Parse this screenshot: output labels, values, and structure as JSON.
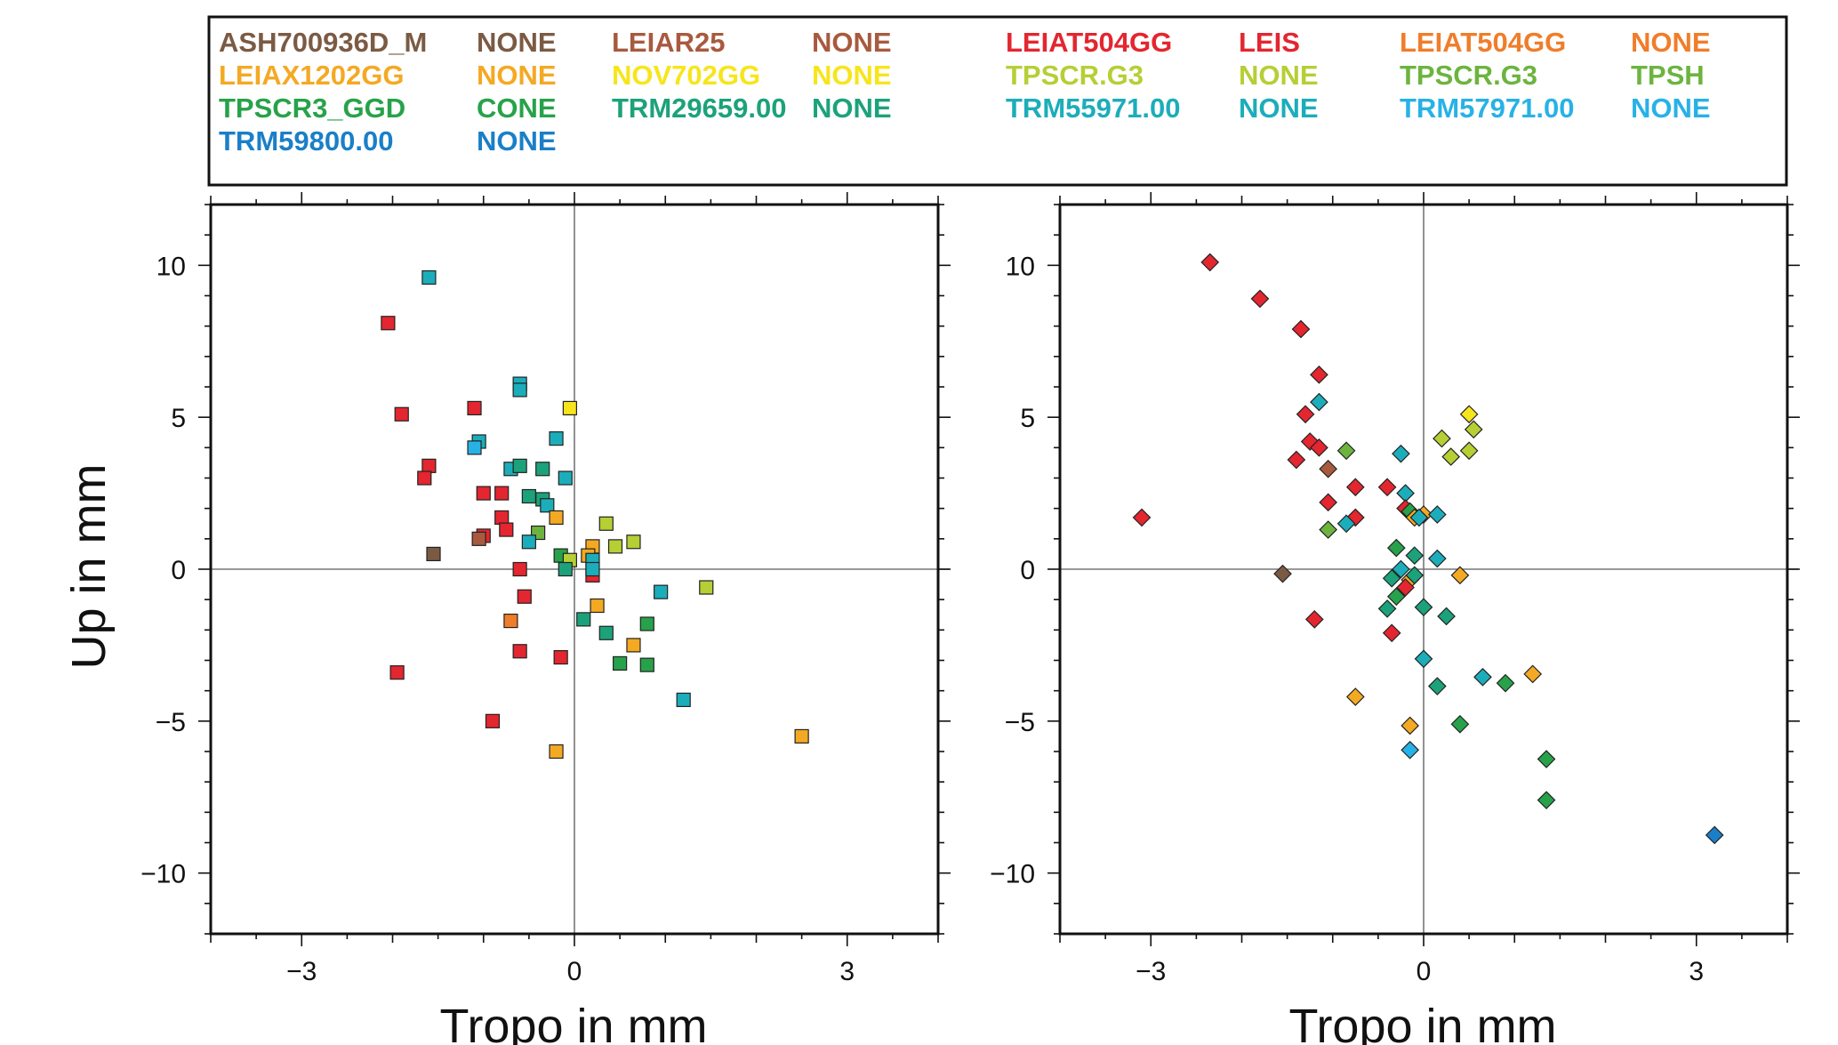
{
  "legend": [
    {
      "model": "ASH700936D_M",
      "radome": "NONE",
      "color": "#7b5a44"
    },
    {
      "model": "LEIAR25",
      "radome": "NONE",
      "color": "#a85a3e"
    },
    {
      "model": "LEIAT504GG",
      "radome": "LEIS",
      "color": "#e3262f"
    },
    {
      "model": "LEIAT504GG",
      "radome": "NONE",
      "color": "#f07d2a"
    },
    {
      "model": "LEIAX1202GG",
      "radome": "NONE",
      "color": "#f4a923"
    },
    {
      "model": "NOV702GG",
      "radome": "NONE",
      "color": "#f7e51c"
    },
    {
      "model": "TPSCR.G3",
      "radome": "NONE",
      "color": "#b5cf35"
    },
    {
      "model": "TPSCR.G3",
      "radome": "TPSH",
      "color": "#6cb43f"
    },
    {
      "model": "TPSCR3_GGD",
      "radome": "CONE",
      "color": "#27a24a"
    },
    {
      "model": "TRM29659.00",
      "radome": "NONE",
      "color": "#1ca27a"
    },
    {
      "model": "TRM55971.00",
      "radome": "NONE",
      "color": "#1cadba"
    },
    {
      "model": "TRM57971.00",
      "radome": "NONE",
      "color": "#27b2e6"
    },
    {
      "model": "TRM59800.00",
      "radome": "NONE",
      "color": "#1a7fc8"
    }
  ],
  "chart_data": [
    {
      "type": "scatter",
      "marker": "square",
      "xlabel": "Tropo in mm",
      "ylabel": "Up in mm",
      "xlim": [
        -4,
        4
      ],
      "ylim": [
        -12,
        12
      ],
      "xticks": [
        "−3",
        "0",
        "3"
      ],
      "yticks": [
        "10",
        "5",
        "0",
        "−5",
        "−10"
      ],
      "points": [
        {
          "x": -2.05,
          "y": 8.1,
          "c": "#e3262f"
        },
        {
          "x": -1.9,
          "y": 5.1,
          "c": "#e3262f"
        },
        {
          "x": -1.6,
          "y": 3.4,
          "c": "#e3262f"
        },
        {
          "x": -1.65,
          "y": 3.0,
          "c": "#e3262f"
        },
        {
          "x": -1.1,
          "y": 5.3,
          "c": "#e3262f"
        },
        {
          "x": -1.0,
          "y": 2.5,
          "c": "#e3262f"
        },
        {
          "x": -0.8,
          "y": 2.5,
          "c": "#e3262f"
        },
        {
          "x": -0.8,
          "y": 1.7,
          "c": "#e3262f"
        },
        {
          "x": -0.75,
          "y": 1.3,
          "c": "#e3262f"
        },
        {
          "x": -1.0,
          "y": 1.1,
          "c": "#e3262f"
        },
        {
          "x": -1.05,
          "y": 1.0,
          "c": "#a85a3e"
        },
        {
          "x": -1.55,
          "y": 0.5,
          "c": "#7b5a44"
        },
        {
          "x": -1.95,
          "y": -3.4,
          "c": "#e3262f"
        },
        {
          "x": -0.9,
          "y": -5.0,
          "c": "#e3262f"
        },
        {
          "x": -0.6,
          "y": 0.0,
          "c": "#e3262f"
        },
        {
          "x": -0.55,
          "y": -0.9,
          "c": "#e3262f"
        },
        {
          "x": -0.6,
          "y": -2.7,
          "c": "#e3262f"
        },
        {
          "x": -0.7,
          "y": -1.7,
          "c": "#f07d2a"
        },
        {
          "x": -0.15,
          "y": -2.9,
          "c": "#e3262f"
        },
        {
          "x": 0.2,
          "y": -0.2,
          "c": "#e3262f"
        },
        {
          "x": -1.6,
          "y": 9.6,
          "c": "#1cadba"
        },
        {
          "x": -0.6,
          "y": 6.1,
          "c": "#1cadba"
        },
        {
          "x": -0.6,
          "y": 5.9,
          "c": "#1cadba"
        },
        {
          "x": -1.05,
          "y": 4.2,
          "c": "#1cadba"
        },
        {
          "x": -1.1,
          "y": 4.0,
          "c": "#27b2e6"
        },
        {
          "x": -0.2,
          "y": 4.3,
          "c": "#1cadba"
        },
        {
          "x": -0.05,
          "y": 5.3,
          "c": "#f7e51c"
        },
        {
          "x": -0.7,
          "y": 3.3,
          "c": "#1cadba"
        },
        {
          "x": -0.6,
          "y": 3.4,
          "c": "#1ca27a"
        },
        {
          "x": -0.35,
          "y": 3.3,
          "c": "#1ca27a"
        },
        {
          "x": -0.1,
          "y": 3.0,
          "c": "#1cadba"
        },
        {
          "x": -0.5,
          "y": 2.4,
          "c": "#1ca27a"
        },
        {
          "x": -0.35,
          "y": 2.3,
          "c": "#1ca27a"
        },
        {
          "x": -0.3,
          "y": 2.1,
          "c": "#1cadba"
        },
        {
          "x": -0.2,
          "y": 1.7,
          "c": "#f4a923"
        },
        {
          "x": -0.4,
          "y": 1.2,
          "c": "#6cb43f"
        },
        {
          "x": -0.5,
          "y": 0.9,
          "c": "#1cadba"
        },
        {
          "x": 0.35,
          "y": 1.5,
          "c": "#b5cf35"
        },
        {
          "x": 0.65,
          "y": 0.9,
          "c": "#b5cf35"
        },
        {
          "x": 0.45,
          "y": 0.75,
          "c": "#b5cf35"
        },
        {
          "x": 0.2,
          "y": 0.75,
          "c": "#f4a923"
        },
        {
          "x": 0.15,
          "y": 0.45,
          "c": "#f4a923"
        },
        {
          "x": -0.15,
          "y": 0.45,
          "c": "#27a24a"
        },
        {
          "x": -0.05,
          "y": 0.3,
          "c": "#b5cf35"
        },
        {
          "x": -0.1,
          "y": 0.0,
          "c": "#1ca27a"
        },
        {
          "x": 0.2,
          "y": 0.3,
          "c": "#1cadba"
        },
        {
          "x": 0.2,
          "y": 0.0,
          "c": "#1cadba"
        },
        {
          "x": 1.45,
          "y": -0.6,
          "c": "#b5cf35"
        },
        {
          "x": 0.95,
          "y": -0.75,
          "c": "#1cadba"
        },
        {
          "x": 0.25,
          "y": -1.2,
          "c": "#f4a923"
        },
        {
          "x": 0.1,
          "y": -1.65,
          "c": "#1ca27a"
        },
        {
          "x": 0.8,
          "y": -1.8,
          "c": "#27a24a"
        },
        {
          "x": 0.35,
          "y": -2.1,
          "c": "#1ca27a"
        },
        {
          "x": 0.65,
          "y": -2.5,
          "c": "#f4a923"
        },
        {
          "x": 0.5,
          "y": -3.1,
          "c": "#27a24a"
        },
        {
          "x": 0.8,
          "y": -3.15,
          "c": "#27a24a"
        },
        {
          "x": 1.2,
          "y": -4.3,
          "c": "#1cadba"
        },
        {
          "x": -0.2,
          "y": -6.0,
          "c": "#f4a923"
        },
        {
          "x": 2.5,
          "y": -5.5,
          "c": "#f4a923"
        }
      ]
    },
    {
      "type": "scatter",
      "marker": "diamond",
      "xlabel": "Tropo in mm",
      "ylabel": "",
      "xlim": [
        -4,
        4
      ],
      "ylim": [
        -12,
        12
      ],
      "xticks": [
        "−3",
        "0",
        "3"
      ],
      "yticks": [
        "10",
        "5",
        "0",
        "−5",
        "−10"
      ],
      "points": [
        {
          "x": -3.1,
          "y": 1.7,
          "c": "#e3262f"
        },
        {
          "x": -2.35,
          "y": 10.1,
          "c": "#e3262f"
        },
        {
          "x": -1.8,
          "y": 8.9,
          "c": "#e3262f"
        },
        {
          "x": -1.35,
          "y": 7.9,
          "c": "#e3262f"
        },
        {
          "x": -1.15,
          "y": 6.4,
          "c": "#e3262f"
        },
        {
          "x": -1.3,
          "y": 5.1,
          "c": "#e3262f"
        },
        {
          "x": -1.15,
          "y": 5.5,
          "c": "#1cadba"
        },
        {
          "x": -1.25,
          "y": 4.2,
          "c": "#e3262f"
        },
        {
          "x": -1.15,
          "y": 4.0,
          "c": "#e3262f"
        },
        {
          "x": -1.4,
          "y": 3.6,
          "c": "#e3262f"
        },
        {
          "x": -0.85,
          "y": 3.9,
          "c": "#6cb43f"
        },
        {
          "x": -1.05,
          "y": 3.3,
          "c": "#a85a3e"
        },
        {
          "x": -0.75,
          "y": 2.7,
          "c": "#e3262f"
        },
        {
          "x": -0.4,
          "y": 2.7,
          "c": "#e3262f"
        },
        {
          "x": -1.05,
          "y": 2.2,
          "c": "#e3262f"
        },
        {
          "x": -0.75,
          "y": 1.7,
          "c": "#e3262f"
        },
        {
          "x": -0.85,
          "y": 1.5,
          "c": "#1cadba"
        },
        {
          "x": -1.05,
          "y": 1.3,
          "c": "#6cb43f"
        },
        {
          "x": -1.55,
          "y": -0.15,
          "c": "#7b5a44"
        },
        {
          "x": -1.2,
          "y": -1.65,
          "c": "#e3262f"
        },
        {
          "x": -0.35,
          "y": -2.1,
          "c": "#e3262f"
        },
        {
          "x": -0.75,
          "y": -4.2,
          "c": "#f4a923"
        },
        {
          "x": -0.25,
          "y": 3.8,
          "c": "#1cadba"
        },
        {
          "x": 0.2,
          "y": 4.3,
          "c": "#b5cf35"
        },
        {
          "x": 0.3,
          "y": 3.7,
          "c": "#b5cf35"
        },
        {
          "x": 0.5,
          "y": 5.1,
          "c": "#f7e51c"
        },
        {
          "x": 0.55,
          "y": 4.6,
          "c": "#b5cf35"
        },
        {
          "x": 0.5,
          "y": 3.9,
          "c": "#b5cf35"
        },
        {
          "x": -0.2,
          "y": 2.5,
          "c": "#1cadba"
        },
        {
          "x": -0.2,
          "y": 2.0,
          "c": "#e3262f"
        },
        {
          "x": -0.15,
          "y": 1.9,
          "c": "#27a24a"
        },
        {
          "x": -0.1,
          "y": 1.7,
          "c": "#f4a923"
        },
        {
          "x": 0.0,
          "y": 1.8,
          "c": "#f4a923"
        },
        {
          "x": -0.05,
          "y": 1.7,
          "c": "#1cadba"
        },
        {
          "x": 0.15,
          "y": 1.8,
          "c": "#1cadba"
        },
        {
          "x": -0.3,
          "y": 0.7,
          "c": "#27a24a"
        },
        {
          "x": -0.1,
          "y": 0.45,
          "c": "#1ca27a"
        },
        {
          "x": 0.15,
          "y": 0.35,
          "c": "#1cadba"
        },
        {
          "x": 0.4,
          "y": -0.2,
          "c": "#f4a923"
        },
        {
          "x": -0.25,
          "y": 0.0,
          "c": "#1cadba"
        },
        {
          "x": -0.35,
          "y": -0.3,
          "c": "#1ca27a"
        },
        {
          "x": -0.15,
          "y": -0.35,
          "c": "#f4a923"
        },
        {
          "x": -0.2,
          "y": -0.6,
          "c": "#e3262f"
        },
        {
          "x": -0.1,
          "y": -0.2,
          "c": "#1ca27a"
        },
        {
          "x": -0.3,
          "y": -0.9,
          "c": "#27a24a"
        },
        {
          "x": -0.4,
          "y": -1.3,
          "c": "#1ca27a"
        },
        {
          "x": 0.0,
          "y": -1.25,
          "c": "#1ca27a"
        },
        {
          "x": 0.25,
          "y": -1.55,
          "c": "#1ca27a"
        },
        {
          "x": 0.0,
          "y": -2.95,
          "c": "#1cadba"
        },
        {
          "x": 0.15,
          "y": -3.85,
          "c": "#1ca27a"
        },
        {
          "x": 0.65,
          "y": -3.55,
          "c": "#1cadba"
        },
        {
          "x": 0.9,
          "y": -3.75,
          "c": "#27a24a"
        },
        {
          "x": 1.2,
          "y": -3.45,
          "c": "#f4a923"
        },
        {
          "x": -0.15,
          "y": -5.15,
          "c": "#f4a923"
        },
        {
          "x": 0.4,
          "y": -5.1,
          "c": "#27a24a"
        },
        {
          "x": -0.15,
          "y": -5.95,
          "c": "#27b2e6"
        },
        {
          "x": 1.35,
          "y": -6.25,
          "c": "#27a24a"
        },
        {
          "x": 1.35,
          "y": -7.6,
          "c": "#27a24a"
        },
        {
          "x": 3.2,
          "y": -8.75,
          "c": "#1a7fc8"
        }
      ]
    }
  ]
}
